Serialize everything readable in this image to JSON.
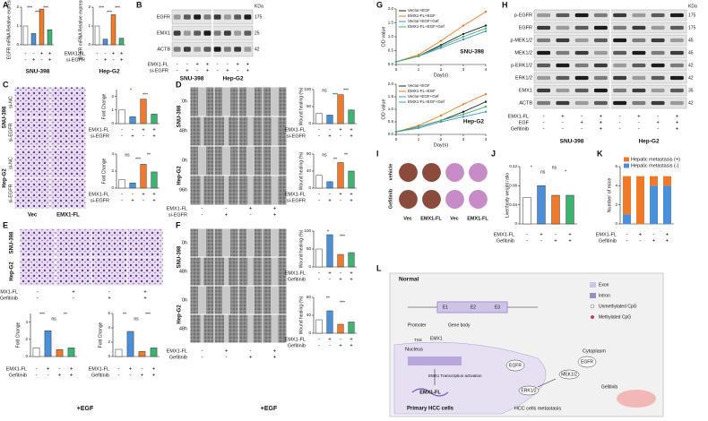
{
  "panel_labels": [
    "A",
    "B",
    "C",
    "D",
    "E",
    "F",
    "G",
    "H",
    "I",
    "J",
    "K",
    "L"
  ],
  "colors": [
    "#ffffff",
    "#4a90d9",
    "#f07a2a",
    "#3cb371"
  ],
  "cell_lines": [
    "SNU-398",
    "Hep-G2"
  ],
  "egf_footer": "+EGF",
  "A": {
    "conditions": [
      {
        "name": "EMX1-FL",
        "signs": [
          "-",
          "-",
          "+",
          "+"
        ]
      },
      {
        "name": "si-EGFR",
        "signs": [
          "-",
          "+",
          "-",
          "+"
        ]
      }
    ],
    "charts": [
      {
        "ylabel": "EGFR mRNA Relative expression",
        "values": [
          1,
          0.6,
          1.9,
          0.8
        ],
        "ylim": [
          0,
          2
        ],
        "yticks": [
          0,
          1,
          2
        ],
        "sig": [
          "***",
          "***",
          "***"
        ]
      },
      {
        "ylabel": "EGFR mRNA Relative expression",
        "values": [
          1,
          0.3,
          1.6,
          0.35
        ],
        "ylim": [
          0,
          2
        ],
        "yticks": [
          0,
          1,
          2
        ],
        "sig": [
          "***",
          "***",
          "***"
        ]
      }
    ]
  },
  "B": {
    "kda_unit": "KDa",
    "proteins": [
      "EGFR",
      "EMX1",
      "ACTB"
    ],
    "kda": [
      "175",
      "25",
      "42"
    ],
    "conditions": [
      {
        "name": "EMX1-FL",
        "signs": [
          "-",
          "-",
          "+",
          "+",
          "-",
          "-",
          "+",
          "+"
        ]
      },
      {
        "name": "si-EGFR",
        "signs": [
          "-",
          "+",
          "-",
          "+",
          "-",
          "+",
          "-",
          "+"
        ]
      }
    ]
  },
  "C": {
    "rows": [
      "si-NC",
      "si-EGFR"
    ],
    "columns": [
      "Vec",
      "EMX1-FL"
    ],
    "charts": [
      {
        "ylabel": "Fold Change",
        "values": [
          1,
          0.5,
          1.8,
          0.7
        ],
        "ylim": [
          0,
          2.5
        ],
        "yticks": [
          0,
          1,
          2
        ],
        "sig": [
          "*",
          "***"
        ],
        "conditions": [
          {
            "name": "EMX1-FL",
            "signs": [
              "-",
              "-",
              "+",
              "+"
            ]
          },
          {
            "name": "si-EGFR",
            "signs": [
              "-",
              "+",
              "-",
              "+"
            ]
          }
        ]
      },
      {
        "ylabel": "Fold Change",
        "values": [
          1,
          0.6,
          2.8,
          1.9
        ],
        "ylim": [
          0,
          4
        ],
        "yticks": [
          0,
          2,
          4
        ],
        "sig": [
          "ns",
          "***",
          "**"
        ],
        "conditions": [
          {
            "name": "EMX1-FL",
            "signs": [
              "-",
              "-",
              "+",
              "+"
            ]
          },
          {
            "name": "si-EGFR",
            "signs": [
              "-",
              "+",
              "-",
              "+"
            ]
          }
        ]
      }
    ]
  },
  "D": {
    "rows": [
      "0h",
      "48h",
      "0h",
      "96h"
    ],
    "conditions": [
      {
        "name": "EMX1-FL",
        "signs": [
          "-",
          "-",
          "+",
          "+"
        ]
      },
      {
        "name": "si-EGFR",
        "signs": [
          "-",
          "+",
          "-",
          "+"
        ]
      }
    ],
    "charts": [
      {
        "ylabel": "Wound healing (%)",
        "values": [
          30,
          25,
          85,
          40
        ],
        "ylim": [
          0,
          100
        ],
        "yticks": [
          0,
          50,
          100
        ],
        "sig": [
          "ns",
          "***",
          "***"
        ],
        "conditions": [
          {
            "name": "EMX1-FL",
            "signs": [
              "-",
              "-",
              "+",
              "+"
            ]
          },
          {
            "name": "si-EGFR",
            "signs": [
              "-",
              "+",
              "-",
              "+"
            ]
          }
        ]
      },
      {
        "ylabel": "Wound healing (%)",
        "values": [
          30,
          15,
          60,
          40
        ],
        "ylim": [
          0,
          80
        ],
        "yticks": [
          0,
          40,
          80
        ],
        "sig": [
          "ns",
          "**",
          "**"
        ],
        "conditions": [
          {
            "name": "EMX1-FL",
            "signs": [
              "-",
              "-",
              "+",
              "+"
            ]
          },
          {
            "name": "si-EGFR",
            "signs": [
              "-",
              "+",
              "-",
              "+"
            ]
          }
        ]
      }
    ]
  },
  "E": {
    "conditions": [
      {
        "name": "EMX1-FL",
        "signs": [
          "-",
          "+",
          "-",
          "+"
        ]
      },
      {
        "name": "Gefitinib",
        "signs": [
          "-",
          "-",
          "+",
          "+"
        ]
      }
    ],
    "charts": [
      {
        "ylabel": "Fold Change",
        "values": [
          1,
          3,
          0.8,
          1
        ],
        "ylim": [
          0,
          5
        ],
        "yticks": [
          0,
          2,
          4
        ],
        "sig": [
          "***",
          "ns",
          "**"
        ],
        "conditions": [
          {
            "name": "EMX1-FL",
            "signs": [
              "-",
              "+",
              "-",
              "+"
            ]
          },
          {
            "name": "Gefitinib",
            "signs": [
              "-",
              "-",
              "+",
              "+"
            ]
          }
        ]
      },
      {
        "ylabel": "Fold Change",
        "values": [
          1,
          3.5,
          0.7,
          1.2
        ],
        "ylim": [
          0,
          6
        ],
        "yticks": [
          0,
          2,
          4,
          6
        ],
        "sig": [
          "**",
          "ns",
          "***"
        ],
        "conditions": [
          {
            "name": "EMX1-FL",
            "signs": [
              "-",
              "+",
              "-",
              "+"
            ]
          },
          {
            "name": "Gefitinib",
            "signs": [
              "-",
              "-",
              "+",
              "+"
            ]
          }
        ]
      }
    ]
  },
  "F": {
    "rows": [
      "0h",
      "48h",
      "0h",
      "48h"
    ],
    "conditions": [
      {
        "name": "EMX1-FL",
        "signs": [
          "-",
          "+",
          "-",
          "+"
        ]
      },
      {
        "name": "Gefitinib",
        "signs": [
          "-",
          "-",
          "+",
          "+"
        ]
      }
    ],
    "charts": [
      {
        "ylabel": "Wound healing (%)",
        "values": [
          50,
          90,
          35,
          40
        ],
        "ylim": [
          0,
          100
        ],
        "yticks": [
          0,
          50,
          100
        ],
        "sig": [
          "*",
          "***"
        ],
        "conditions": [
          {
            "name": "EMX1-FL",
            "signs": [
              "-",
              "+",
              "-",
              "+"
            ]
          },
          {
            "name": "Gefitinib",
            "signs": [
              "-",
              "-",
              "+",
              "+"
            ]
          }
        ]
      },
      {
        "ylabel": "Wound healing (%)",
        "values": [
          30,
          50,
          20,
          25
        ],
        "ylim": [
          0,
          80
        ],
        "yticks": [
          0,
          40,
          80
        ],
        "sig": [
          "**",
          "***"
        ],
        "conditions": [
          {
            "name": "EMX1-FL",
            "signs": [
              "-",
              "+",
              "-",
              "+"
            ]
          },
          {
            "name": "Gefitinib",
            "signs": [
              "-",
              "-",
              "+",
              "+"
            ]
          }
        ]
      }
    ]
  },
  "G": {
    "charts": [
      {
        "type": "line",
        "title": "SNU-398",
        "xlabel": "Day(s)",
        "ylabel": "OD value",
        "x": [
          0,
          1,
          2,
          3,
          4
        ],
        "xlim": [
          0,
          4
        ],
        "xticks": [
          0,
          1,
          2,
          3,
          4
        ],
        "ylim": [
          0,
          2
        ],
        "yticks": [
          {
            "value": 0,
            "label": "0.0"
          },
          {
            "value": 0.5,
            "label": "0.5"
          },
          {
            "value": 1,
            "label": "1.0"
          },
          {
            "value": 1.5,
            "label": "1.5"
          },
          {
            "value": 2,
            "label": "2.0"
          }
        ],
        "series": [
          {
            "name": "Vector+EGF",
            "color": "#222222",
            "values": [
              0.1,
              0.3,
              0.7,
              1.1,
              1.4
            ]
          },
          {
            "name": "EMX1-FL+EGF",
            "color": "#f07a2a",
            "values": [
              0.1,
              0.35,
              0.85,
              1.4,
              1.9
            ]
          },
          {
            "name": "Vector+EGF+Gef",
            "color": "#4a90d9",
            "values": [
              0.1,
              0.3,
              0.6,
              0.9,
              1.2
            ]
          },
          {
            "name": "EMX1-FL+EGF+Gef",
            "color": "#3cb371",
            "values": [
              0.1,
              0.3,
              0.65,
              1.0,
              1.3
            ]
          }
        ]
      },
      {
        "type": "line",
        "title": "Hep-G2",
        "xlabel": "Day(s)",
        "ylabel": "OD value",
        "x": [
          0,
          1,
          2,
          3,
          4
        ],
        "xlim": [
          0,
          4
        ],
        "xticks": [
          0,
          1,
          2,
          3,
          4
        ],
        "ylim": [
          0,
          2
        ],
        "yticks": [
          {
            "value": 0,
            "label": "0.0"
          },
          {
            "value": 0.5,
            "label": "0.5"
          },
          {
            "value": 1,
            "label": "1.0"
          },
          {
            "value": 1.5,
            "label": "1.5"
          },
          {
            "value": 2,
            "label": "2.0"
          }
        ],
        "series": [
          {
            "name": "Vector+EGF",
            "color": "#222222",
            "values": [
              0.1,
              0.3,
              0.55,
              0.9,
              1.3
            ]
          },
          {
            "name": "EMX1-FL+EGF",
            "color": "#f07a2a",
            "values": [
              0.1,
              0.35,
              0.75,
              1.2,
              1.6
            ]
          },
          {
            "name": "Vector+EGF+Gef",
            "color": "#4a90d9",
            "values": [
              0.1,
              0.25,
              0.5,
              0.7,
              0.9
            ]
          },
          {
            "name": "EMX1-FL+EGF+Gef",
            "color": "#3cb371",
            "values": [
              0.1,
              0.3,
              0.55,
              0.8,
              1.1
            ]
          }
        ]
      }
    ]
  },
  "H": {
    "kda_unit": "KDa",
    "proteins": [
      "p-EGFR",
      "EGFR",
      "p-MEK1/2",
      "MEK1/2",
      "p-ERK1/2",
      "ERK1/2",
      "EMX1",
      "ACTB"
    ],
    "kda": [
      "175",
      "175",
      "45",
      "45",
      "42",
      "42",
      "35",
      "42"
    ],
    "conditions": [
      {
        "name": "EMX1-FL",
        "signs": [
          "-",
          "+",
          "-",
          "+",
          "-",
          "+",
          "-",
          "+"
        ]
      },
      {
        "name": "EGF",
        "signs": [
          "-",
          "-",
          "+",
          "+",
          "-",
          "-",
          "+",
          "+"
        ]
      },
      {
        "name": "Gefitinib",
        "signs": [
          "-",
          "-",
          "-",
          "+",
          "-",
          "-",
          "-",
          "+"
        ]
      }
    ]
  },
  "I": {
    "rows": [
      "vehicle",
      "Gefitinib"
    ],
    "columns": [
      "Vec",
      "EMX1-FL",
      "Vec",
      "EMX1-FL"
    ]
  },
  "J": {
    "ylabel": "Liver/body weight ratio",
    "values": [
      0.055,
      0.08,
      0.06,
      0.06
    ],
    "ylim": [
      0,
      0.12
    ],
    "yticks": [
      0,
      0.04,
      0.08,
      0.12
    ],
    "sig": [
      "*",
      "ns",
      "ns",
      "*"
    ],
    "conditions": [
      {
        "name": "EMX1-FL",
        "signs": [
          "-",
          "+",
          "-",
          "+"
        ]
      },
      {
        "name": "Gefitinib",
        "signs": [
          "-",
          "-",
          "+",
          "+"
        ]
      }
    ]
  },
  "K": {
    "type": "stacked_bar",
    "ylabel": "Number of mice",
    "ylim": [
      0,
      6
    ],
    "yticks": [
      0,
      2,
      4,
      6
    ],
    "series": [
      {
        "name": "Hepatic metastasis (-)",
        "color": "#4a90d9",
        "values": [
          1,
          0,
          4,
          4
        ]
      },
      {
        "name": "Hepatic metastasis (+)",
        "color": "#f07a2a",
        "values": [
          4,
          5,
          1,
          1
        ]
      }
    ],
    "conditions": [
      {
        "name": "EMX1-FL",
        "signs": [
          "-",
          "+",
          "-",
          "+"
        ]
      },
      {
        "name": "Gefitinib",
        "signs": [
          "-",
          "-",
          "+",
          "+"
        ]
      }
    ]
  },
  "L": {
    "labels": [
      "Normal",
      "Exon",
      "Intron",
      "Unmethylated CpG",
      "Methylated CpG",
      "E1",
      "E2",
      "E3",
      "Promoter",
      "Gene body",
      "TSS",
      "EMX1",
      "Nucleus",
      "Cytoplasm",
      "EMX1 Transcription activation",
      "EMX1-FL",
      "EGFR",
      "EGFR",
      "MEK1/2",
      "ERK1/2",
      "Gefitinib",
      "Primary HCC cells",
      "HCC cells metastasis"
    ]
  }
}
